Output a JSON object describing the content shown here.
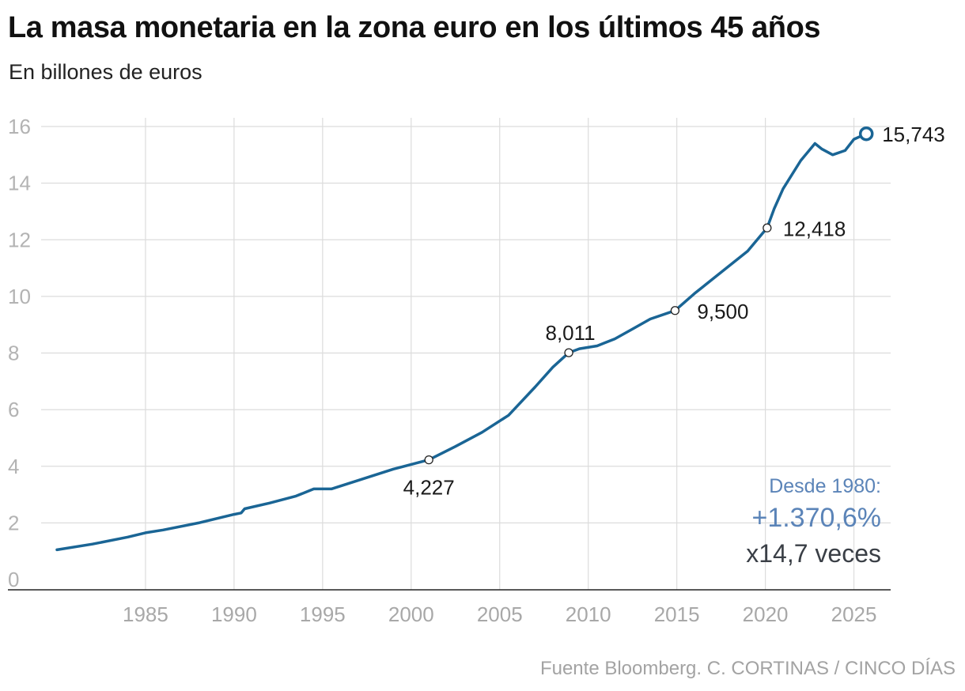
{
  "header": {
    "title": "La masa monetaria en la zona euro en los últimos 45 años",
    "subtitle": "En billones de euros"
  },
  "footer": {
    "source": "Fuente Bloomberg. C. CORTINAS / CINCO DÍAS"
  },
  "colors": {
    "line": "#1a6595",
    "grid": "#dcdcdc",
    "annotation": "#5b84b8"
  },
  "chart_data": {
    "type": "line",
    "title": "La masa monetaria en la zona euro en los últimos 45 años",
    "subtitle": "En billones de euros",
    "xlim": [
      1980,
      2026
    ],
    "ylim": [
      0,
      16
    ],
    "y_ticks": [
      0,
      2,
      4,
      6,
      8,
      10,
      12,
      14,
      16
    ],
    "y_tick_labels": [
      "0",
      "2",
      "4",
      "6",
      "8",
      "10",
      "12",
      "14",
      "16"
    ],
    "x_ticks": [
      1985,
      1990,
      1995,
      2000,
      2005,
      2010,
      2015,
      2020,
      2025
    ],
    "x_tick_labels": [
      "1985",
      "1990",
      "1995",
      "2000",
      "2005",
      "2010",
      "2015",
      "2020",
      "2025"
    ],
    "grid": true,
    "series": [
      {
        "x": [
          1980.0,
          1982.0,
          1984.0,
          1985.0,
          1986.0,
          1988.0,
          1990.0,
          1990.4,
          1990.6,
          1992.0,
          1993.5,
          1994.5,
          1995.5,
          1997.0,
          1999.0,
          2001.0,
          2002.5,
          2004.0,
          2005.5,
          2007.0,
          2008.0,
          2008.9,
          2009.5,
          2010.5,
          2011.5,
          2012.5,
          2013.5,
          2014.9,
          2016.0,
          2017.0,
          2018.0,
          2019.0,
          2020.1,
          2020.5,
          2021.0,
          2022.0,
          2022.8,
          2023.2,
          2023.8,
          2024.5,
          2025.0,
          2025.7
        ],
        "y": [
          1.05,
          1.25,
          1.5,
          1.65,
          1.75,
          2.0,
          2.3,
          2.35,
          2.5,
          2.7,
          2.95,
          3.2,
          3.2,
          3.5,
          3.9,
          4.227,
          4.7,
          5.2,
          5.8,
          6.8,
          7.5,
          8.011,
          8.15,
          8.25,
          8.5,
          8.85,
          9.2,
          9.5,
          10.1,
          10.6,
          11.1,
          11.6,
          12.418,
          13.1,
          13.8,
          14.8,
          15.4,
          15.2,
          15.0,
          15.15,
          15.55,
          15.743
        ]
      }
    ],
    "annotations": [
      {
        "x": 2001.0,
        "y": 4.227,
        "label": "4,227",
        "position": "below"
      },
      {
        "x": 2008.9,
        "y": 8.011,
        "label": "8,011",
        "position": "above"
      },
      {
        "x": 2014.9,
        "y": 9.5,
        "label": "9,500",
        "position": "right"
      },
      {
        "x": 2020.1,
        "y": 12.418,
        "label": "12,418",
        "position": "right"
      },
      {
        "x": 2025.7,
        "y": 15.743,
        "label": "15,743",
        "position": "right"
      }
    ],
    "summary": {
      "line1": "Desde 1980:",
      "line2": "+1.370,6%",
      "line3": "x14,7 veces"
    }
  }
}
